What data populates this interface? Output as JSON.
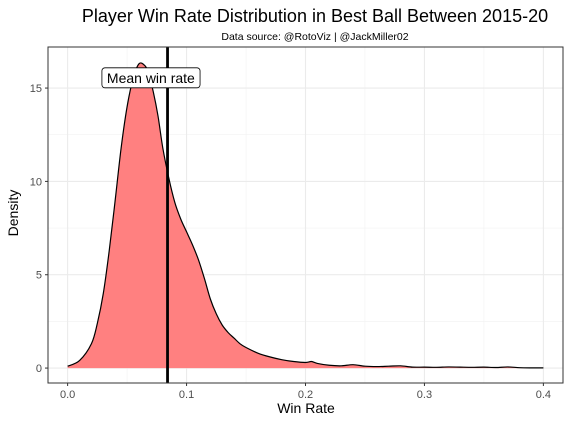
{
  "chart_data": {
    "type": "area",
    "title": "Player Win Rate Distribution in Best Ball Between 2015-20",
    "subtitle": "Data source: @RotoViz | @JackMiller02",
    "xlabel": "Win Rate",
    "ylabel": "Density",
    "xlim": [
      -0.0165,
      0.4165
    ],
    "ylim": [
      -0.8,
      17.2
    ],
    "x_ticks": [
      0.0,
      0.1,
      0.2,
      0.3,
      0.4
    ],
    "x_tick_labels": [
      "0.0",
      "0.1",
      "0.2",
      "0.3",
      "0.4"
    ],
    "y_ticks": [
      0,
      5,
      10,
      15
    ],
    "y_tick_labels": [
      "0",
      "5",
      "10",
      "15"
    ],
    "grid": true,
    "fill_color": "#ff8080",
    "line_color": "#000000",
    "series": [
      {
        "x": [
          0.0,
          0.01,
          0.02,
          0.025,
          0.03,
          0.035,
          0.04,
          0.045,
          0.05,
          0.055,
          0.06,
          0.065,
          0.068,
          0.072,
          0.076,
          0.08,
          0.085,
          0.09,
          0.095,
          0.1,
          0.105,
          0.11,
          0.115,
          0.12,
          0.125,
          0.13,
          0.135,
          0.14,
          0.145,
          0.15,
          0.16,
          0.17,
          0.18,
          0.19,
          0.2,
          0.205,
          0.21,
          0.22,
          0.23,
          0.24,
          0.25,
          0.26,
          0.27,
          0.28,
          0.29,
          0.3,
          0.31,
          0.32,
          0.33,
          0.34,
          0.35,
          0.36,
          0.37,
          0.38,
          0.39,
          0.4
        ],
        "y": [
          0.1,
          0.4,
          1.3,
          2.4,
          4.0,
          6.3,
          9.0,
          11.8,
          14.0,
          15.5,
          16.3,
          16.2,
          15.8,
          14.8,
          13.5,
          11.8,
          10.2,
          8.9,
          8.0,
          7.3,
          6.6,
          5.8,
          4.8,
          3.7,
          2.9,
          2.3,
          1.9,
          1.6,
          1.3,
          1.1,
          0.8,
          0.6,
          0.45,
          0.35,
          0.3,
          0.35,
          0.25,
          0.15,
          0.12,
          0.18,
          0.1,
          0.08,
          0.1,
          0.12,
          0.05,
          0.05,
          0.04,
          0.06,
          0.05,
          0.04,
          0.05,
          0.03,
          0.06,
          0.02,
          0.01,
          0.01
        ]
      }
    ],
    "mean_line": {
      "x": 0.084,
      "color": "#000000"
    },
    "annotation": {
      "text": "Mean win rate",
      "x": 0.07,
      "y": 15.55
    }
  }
}
